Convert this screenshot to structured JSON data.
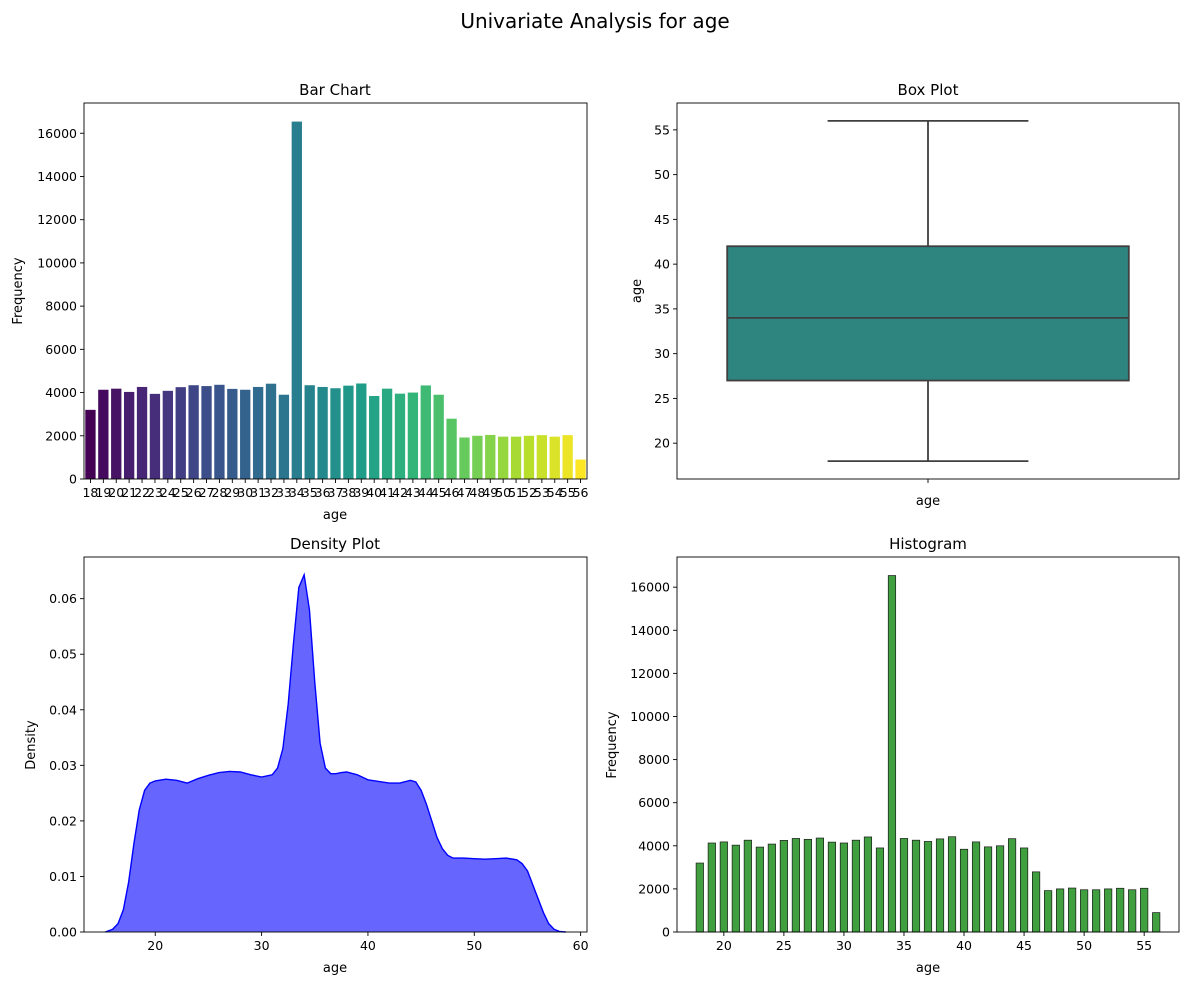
{
  "suptitle": "Univariate Analysis for age",
  "chart_data": [
    {
      "type": "bar",
      "title": "Bar Chart",
      "xlabel": "age",
      "ylabel": "Frequency",
      "categories": [
        "18",
        "19",
        "20",
        "21",
        "22",
        "23",
        "24",
        "25",
        "26",
        "27",
        "28",
        "29",
        "30",
        "31",
        "32",
        "33",
        "34",
        "35",
        "36",
        "37",
        "38",
        "39",
        "40",
        "41",
        "42",
        "43",
        "44",
        "45",
        "46",
        "47",
        "48",
        "49",
        "50",
        "51",
        "52",
        "53",
        "54",
        "55",
        "56"
      ],
      "values": [
        3200,
        4130,
        4180,
        4030,
        4260,
        3940,
        4080,
        4250,
        4340,
        4300,
        4360,
        4170,
        4130,
        4260,
        4410,
        3900,
        16540,
        4340,
        4260,
        4200,
        4320,
        4420,
        3840,
        4180,
        3950,
        4000,
        4330,
        3900,
        2790,
        1920,
        2000,
        2040,
        1960,
        1960,
        2000,
        2030,
        1960,
        2030,
        900
      ],
      "ylim": [
        0,
        17400
      ],
      "yticks": [
        0,
        2000,
        4000,
        6000,
        8000,
        10000,
        12000,
        14000,
        16000
      ],
      "palette": "viridis"
    },
    {
      "type": "box",
      "title": "Box Plot",
      "xlabel": "age",
      "ylabel": "age",
      "min": 18,
      "q1": 27,
      "median": 34,
      "q3": 42,
      "max": 56,
      "ylim": [
        16,
        58
      ],
      "yticks": [
        20,
        25,
        30,
        35,
        40,
        45,
        50,
        55
      ],
      "color": "#2e8580"
    },
    {
      "type": "area",
      "title": "Density Plot",
      "xlabel": "age",
      "ylabel": "Density",
      "x": [
        15.3,
        16,
        16.5,
        17,
        17.5,
        18,
        18.5,
        19,
        19.5,
        20,
        21,
        22,
        23,
        24,
        25,
        26,
        27,
        28,
        29,
        30,
        31,
        31.5,
        32,
        32.5,
        33,
        33.5,
        34,
        34.5,
        35,
        35.5,
        36,
        36.5,
        37,
        37.5,
        38,
        39,
        40,
        41,
        42,
        43,
        44,
        44.5,
        45,
        45.5,
        46,
        46.5,
        47,
        47.5,
        48,
        49,
        50,
        51,
        52,
        53,
        54,
        54.5,
        55,
        55.5,
        56,
        56.5,
        57,
        57.5,
        58,
        58.6
      ],
      "y": [
        0,
        0.0005,
        0.0015,
        0.004,
        0.009,
        0.016,
        0.022,
        0.0255,
        0.0268,
        0.0272,
        0.0275,
        0.0273,
        0.0268,
        0.0276,
        0.0282,
        0.0287,
        0.0289,
        0.0288,
        0.0283,
        0.0279,
        0.0283,
        0.0295,
        0.033,
        0.041,
        0.052,
        0.062,
        0.0643,
        0.058,
        0.045,
        0.034,
        0.0295,
        0.0285,
        0.0285,
        0.0287,
        0.0288,
        0.0283,
        0.0274,
        0.0271,
        0.0268,
        0.0268,
        0.0273,
        0.027,
        0.0255,
        0.023,
        0.02,
        0.017,
        0.015,
        0.0138,
        0.0133,
        0.0133,
        0.0132,
        0.0131,
        0.0132,
        0.0133,
        0.013,
        0.0123,
        0.011,
        0.0085,
        0.006,
        0.0035,
        0.0015,
        0.0005,
        0.0001,
        0
      ],
      "xlim": [
        13.3,
        60.6
      ],
      "xticks": [
        20,
        30,
        40,
        50,
        60
      ],
      "ylim": [
        0,
        0.0675
      ],
      "yticks": [
        0.0,
        0.01,
        0.02,
        0.03,
        0.04,
        0.05,
        0.06
      ],
      "color": "#0000ff"
    },
    {
      "type": "histogram",
      "title": "Histogram",
      "xlabel": "age",
      "ylabel": "Frequency",
      "ages": [
        18,
        19,
        20,
        21,
        22,
        23,
        24,
        25,
        26,
        27,
        28,
        29,
        30,
        31,
        32,
        33,
        34,
        35,
        36,
        37,
        38,
        39,
        40,
        41,
        42,
        43,
        44,
        45,
        46,
        47,
        48,
        49,
        50,
        51,
        52,
        53,
        54,
        55,
        56
      ],
      "values": [
        3200,
        4130,
        4180,
        4030,
        4260,
        3940,
        4080,
        4250,
        4340,
        4300,
        4360,
        4170,
        4130,
        4260,
        4410,
        3900,
        16540,
        4340,
        4260,
        4200,
        4320,
        4420,
        3840,
        4180,
        3950,
        4000,
        4330,
        3900,
        2790,
        1920,
        2000,
        2040,
        1960,
        1960,
        2000,
        2030,
        1960,
        2030,
        900
      ],
      "xlim": [
        16.1,
        57.9
      ],
      "xticks": [
        20,
        25,
        30,
        35,
        40,
        45,
        50,
        55
      ],
      "ylim": [
        0,
        17400
      ],
      "yticks": [
        0,
        2000,
        4000,
        6000,
        8000,
        10000,
        12000,
        14000,
        16000
      ],
      "color": "#008000"
    }
  ]
}
